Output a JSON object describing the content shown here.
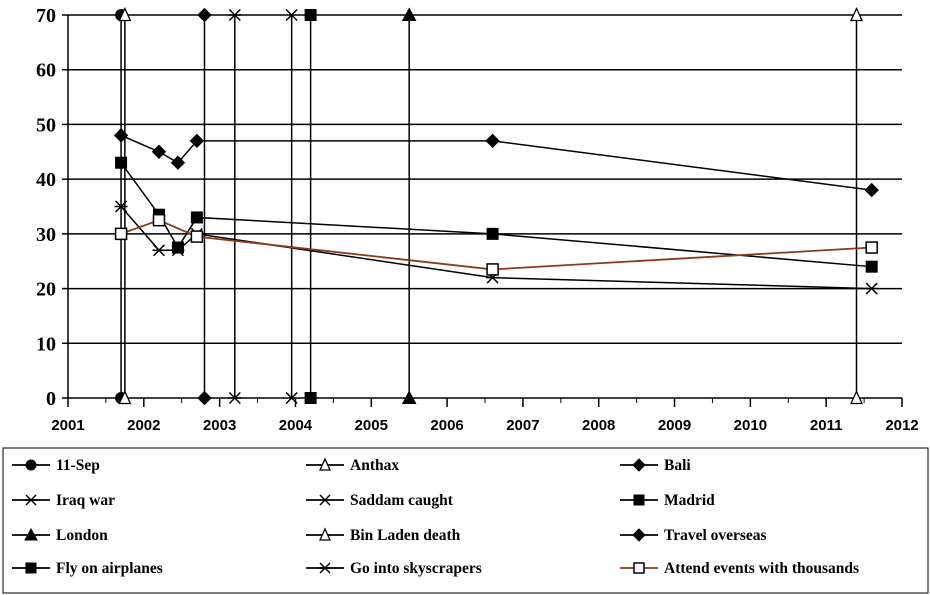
{
  "chart_data": {
    "type": "line",
    "title": "",
    "xlabel": "",
    "ylabel": "",
    "xlim": [
      2001,
      2012
    ],
    "ylim": [
      0,
      70
    ],
    "x_ticks": [
      "2001",
      "2002",
      "2003",
      "2004",
      "2005",
      "2006",
      "2007",
      "2008",
      "2009",
      "2010",
      "2011",
      "2012"
    ],
    "y_ticks": [
      "0",
      "10",
      "20",
      "30",
      "40",
      "50",
      "60",
      "70"
    ],
    "grid": "horizontal",
    "legend_position": "bottom",
    "colors": {
      "default": "#000000",
      "attend_events": "#8B3A1E"
    },
    "series": [
      {
        "name": "11-Sep",
        "marker": "circle",
        "color": "#000000",
        "x": [
          2001.7,
          2001.7
        ],
        "y": [
          0,
          70
        ]
      },
      {
        "name": "Anthax",
        "marker": "triangle-open",
        "color": "#000000",
        "x": [
          2001.75,
          2001.75
        ],
        "y": [
          0,
          70
        ]
      },
      {
        "name": "Bali",
        "marker": "diamond",
        "color": "#000000",
        "x": [
          2002.8,
          2002.8
        ],
        "y": [
          0,
          70
        ]
      },
      {
        "name": "Iraq war",
        "marker": "asterisk",
        "color": "#000000",
        "x": [
          2003.2,
          2003.2
        ],
        "y": [
          0,
          70
        ]
      },
      {
        "name": "Saddam caught",
        "marker": "x",
        "color": "#000000",
        "x": [
          2003.95,
          2003.95
        ],
        "y": [
          0,
          70
        ]
      },
      {
        "name": "Madrid",
        "marker": "square",
        "color": "#000000",
        "x": [
          2004.2,
          2004.2
        ],
        "y": [
          0,
          70
        ]
      },
      {
        "name": "London",
        "marker": "triangle",
        "color": "#000000",
        "x": [
          2005.5,
          2005.5
        ],
        "y": [
          0,
          70
        ]
      },
      {
        "name": "Bin Laden death",
        "marker": "triangle-open",
        "color": "#000000",
        "x": [
          2011.4,
          2011.4
        ],
        "y": [
          0,
          70
        ]
      },
      {
        "name": "Travel overseas",
        "marker": "diamond",
        "color": "#000000",
        "x": [
          2001.7,
          2002.2,
          2002.45,
          2002.7,
          2006.6,
          2011.6
        ],
        "y": [
          48,
          45,
          43,
          47,
          47,
          38
        ]
      },
      {
        "name": "Fly on airplanes",
        "marker": "square",
        "color": "#000000",
        "x": [
          2001.7,
          2002.2,
          2002.45,
          2002.7,
          2006.6,
          2011.6
        ],
        "y": [
          43,
          33.5,
          27.5,
          33,
          30,
          24
        ]
      },
      {
        "name": "Go into skyscrapers",
        "marker": "asterisk",
        "color": "#000000",
        "x": [
          2001.7,
          2002.2,
          2002.45,
          2002.7,
          2006.6,
          2011.6
        ],
        "y": [
          35,
          27,
          27,
          30,
          22,
          20
        ]
      },
      {
        "name": "Attend events with thousands",
        "marker": "square-open",
        "color": "#8B3A1E",
        "x": [
          2001.7,
          2002.2,
          2002.7,
          2006.6,
          2011.6
        ],
        "y": [
          30,
          32.5,
          29.5,
          23.5,
          27.5
        ]
      }
    ]
  }
}
